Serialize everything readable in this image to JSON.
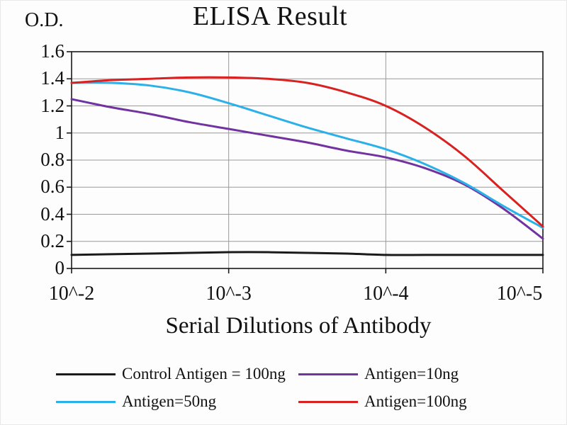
{
  "chart_data": {
    "type": "line",
    "title": "ELISA Result",
    "ylabel": "O.D.",
    "xlabel": "Serial Dilutions of Antibody",
    "ylim": [
      0,
      1.6
    ],
    "grid": true,
    "legend_position": "bottom",
    "x": [
      2,
      2.25,
      2.5,
      2.75,
      3,
      3.25,
      3.5,
      3.75,
      4,
      4.25,
      4.5,
      4.75,
      5
    ],
    "x_tick_exponents": [
      2,
      3,
      4,
      5
    ],
    "x_tick_labels": [
      "10^-2",
      "10^-3",
      "10^-4",
      "10^-5"
    ],
    "y_tick_values": [
      0,
      0.2,
      0.4,
      0.6,
      0.8,
      1,
      1.2,
      1.4,
      1.6
    ],
    "y_tick_labels": [
      "0",
      "0.2",
      "0.4",
      "0.6",
      "0.8",
      "1",
      "1.2",
      "1.4",
      "1.6"
    ],
    "series": [
      {
        "name": "Control Antigen = 100ng",
        "color": "#1a1a1a",
        "values": [
          0.1,
          0.105,
          0.11,
          0.115,
          0.12,
          0.12,
          0.115,
          0.11,
          0.1,
          0.1,
          0.1,
          0.1,
          0.1
        ]
      },
      {
        "name": "Antigen=10ng",
        "color": "#7133a0",
        "values": [
          1.25,
          1.19,
          1.14,
          1.08,
          1.03,
          0.98,
          0.93,
          0.87,
          0.82,
          0.74,
          0.62,
          0.44,
          0.22
        ]
      },
      {
        "name": "Antigen=50ng",
        "color": "#2bb0e8",
        "values": [
          1.37,
          1.37,
          1.35,
          1.3,
          1.22,
          1.13,
          1.04,
          0.96,
          0.88,
          0.77,
          0.63,
          0.46,
          0.3
        ]
      },
      {
        "name": "Antigen=100ng",
        "color": "#d92121",
        "values": [
          1.37,
          1.39,
          1.4,
          1.41,
          1.41,
          1.4,
          1.37,
          1.3,
          1.2,
          1.04,
          0.83,
          0.57,
          0.31
        ]
      }
    ],
    "grid_color": "#9a9a9a",
    "axis_color": "#1a1a1a"
  }
}
